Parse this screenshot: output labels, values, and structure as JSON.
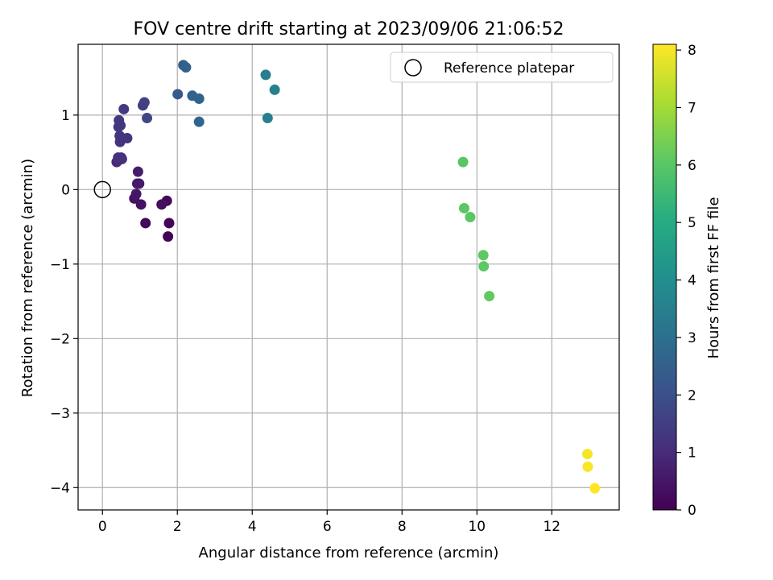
{
  "chart_data": {
    "type": "scatter",
    "title": "FOV centre drift starting at 2023/09/06 21:06:52",
    "xlabel": "Angular distance from reference (arcmin)",
    "ylabel": "Rotation from reference (arcmin)",
    "xlim": [
      -0.65,
      13.8
    ],
    "ylim": [
      -4.3,
      1.95
    ],
    "xticks": [
      0,
      2,
      4,
      6,
      8,
      10,
      12
    ],
    "yticks": [
      -4,
      -3,
      -2,
      -1,
      0,
      1
    ],
    "grid": true,
    "legend": {
      "position": "top-right",
      "entries": [
        "Reference platepar"
      ]
    },
    "reference_point": {
      "label": "Reference platepar",
      "x": 0,
      "y": 0
    },
    "colorbar": {
      "label": "Hours from first FF file",
      "range": [
        0,
        8.1
      ],
      "ticks": [
        0,
        1,
        2,
        3,
        4,
        5,
        6,
        7,
        8
      ],
      "colormap": "viridis"
    },
    "series": [
      {
        "x": [
          1.75,
          1.78,
          1.15,
          1.72,
          1.58,
          1.03,
          0.85,
          0.9,
          0.93,
          0.98,
          0.95,
          0.38,
          0.45,
          0.52,
          0.42,
          0.5,
          0.47,
          0.66,
          0.46,
          0.48,
          0.43,
          0.44,
          0.57,
          1.08,
          1.12,
          1.19,
          2.01,
          2.16,
          2.23,
          2.4,
          2.58,
          2.58,
          4.36,
          4.41,
          4.6,
          9.63,
          9.66,
          9.82,
          10.17,
          10.18,
          10.33,
          12.95,
          12.96,
          13.15
        ],
        "y": [
          -0.63,
          -0.45,
          -0.45,
          -0.15,
          -0.2,
          -0.2,
          -0.12,
          -0.06,
          0.08,
          0.08,
          0.24,
          0.37,
          0.4,
          0.41,
          0.43,
          0.43,
          0.64,
          0.69,
          0.72,
          0.86,
          0.84,
          0.93,
          1.08,
          1.13,
          1.17,
          0.96,
          1.28,
          1.67,
          1.64,
          1.26,
          1.22,
          0.91,
          1.54,
          0.96,
          1.34,
          0.37,
          -0.25,
          -0.37,
          -0.88,
          -1.03,
          -1.43,
          -3.55,
          -3.72,
          -4.01
        ],
        "hours": [
          0.05,
          0.1,
          0.15,
          0.2,
          0.3,
          0.35,
          0.4,
          0.5,
          0.55,
          0.6,
          0.65,
          1.0,
          1.05,
          1.1,
          1.1,
          1.15,
          1.2,
          1.2,
          1.25,
          1.3,
          1.3,
          1.35,
          1.4,
          1.5,
          1.55,
          1.75,
          2.3,
          2.4,
          2.5,
          2.55,
          2.6,
          2.65,
          3.45,
          3.5,
          3.55,
          6.0,
          6.05,
          6.05,
          6.1,
          6.1,
          6.15,
          8.0,
          8.05,
          8.1
        ]
      }
    ]
  }
}
